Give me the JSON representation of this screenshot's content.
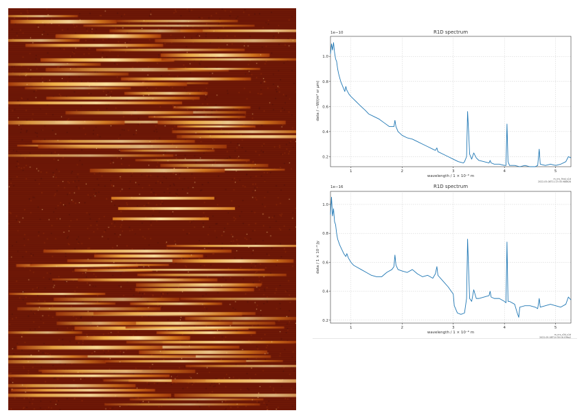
{
  "detector_image": {
    "background": "#6a1606",
    "colors": [
      "#a83e0c",
      "#d4781e",
      "#f0b048",
      "#ffe3a0"
    ]
  },
  "chart_data": [
    {
      "type": "line",
      "title": "R1D spectrum",
      "scale_note": "1e−10",
      "xlabel": "wavelength / 1 × 10⁻⁶ m",
      "ylabel": "data / −W/(m² sr μm)",
      "xlim": [
        0.6,
        5.3
      ],
      "ylim": [
        0.12,
        1.16
      ],
      "xticks": [
        1,
        2,
        3,
        4,
        5
      ],
      "yticks": [
        0.2,
        0.4,
        0.6,
        0.8,
        1.0
      ],
      "grid": true,
      "footnote": [
        "m_nrs_final_s1d",
        "2022-05-08T11:23:30.988628"
      ],
      "series": [
        {
          "color": "#1f77b4",
          "points": [
            [
              0.6,
              1.02
            ],
            [
              0.62,
              1.1
            ],
            [
              0.64,
              1.05
            ],
            [
              0.66,
              1.11
            ],
            [
              0.68,
              1.03
            ],
            [
              0.7,
              0.98
            ],
            [
              0.72,
              0.96
            ],
            [
              0.74,
              0.9
            ],
            [
              0.76,
              0.86
            ],
            [
              0.8,
              0.8
            ],
            [
              0.84,
              0.76
            ],
            [
              0.88,
              0.72
            ],
            [
              0.9,
              0.76
            ],
            [
              0.92,
              0.73
            ],
            [
              0.96,
              0.7
            ],
            [
              1.0,
              0.68
            ],
            [
              1.05,
              0.66
            ],
            [
              1.1,
              0.64
            ],
            [
              1.15,
              0.62
            ],
            [
              1.2,
              0.6
            ],
            [
              1.28,
              0.57
            ],
            [
              1.35,
              0.54
            ],
            [
              1.45,
              0.52
            ],
            [
              1.55,
              0.5
            ],
            [
              1.65,
              0.47
            ],
            [
              1.75,
              0.44
            ],
            [
              1.8,
              0.44
            ],
            [
              1.84,
              0.44
            ],
            [
              1.86,
              0.49
            ],
            [
              1.88,
              0.44
            ],
            [
              1.92,
              0.4
            ],
            [
              2.0,
              0.37
            ],
            [
              2.1,
              0.35
            ],
            [
              2.2,
              0.34
            ],
            [
              2.3,
              0.32
            ],
            [
              2.4,
              0.3
            ],
            [
              2.5,
              0.28
            ],
            [
              2.6,
              0.26
            ],
            [
              2.65,
              0.25
            ],
            [
              2.68,
              0.27
            ],
            [
              2.7,
              0.24
            ],
            [
              2.8,
              0.22
            ],
            [
              2.9,
              0.2
            ],
            [
              3.0,
              0.18
            ],
            [
              3.1,
              0.16
            ],
            [
              3.2,
              0.15
            ],
            [
              3.22,
              0.16
            ],
            [
              3.26,
              0.2
            ],
            [
              3.28,
              0.56
            ],
            [
              3.3,
              0.4
            ],
            [
              3.32,
              0.22
            ],
            [
              3.36,
              0.18
            ],
            [
              3.4,
              0.23
            ],
            [
              3.45,
              0.19
            ],
            [
              3.5,
              0.17
            ],
            [
              3.6,
              0.16
            ],
            [
              3.7,
              0.15
            ],
            [
              3.72,
              0.17
            ],
            [
              3.74,
              0.15
            ],
            [
              3.8,
              0.14
            ],
            [
              3.9,
              0.14
            ],
            [
              4.0,
              0.13
            ],
            [
              4.03,
              0.13
            ],
            [
              4.05,
              0.46
            ],
            [
              4.07,
              0.16
            ],
            [
              4.1,
              0.13
            ],
            [
              4.2,
              0.13
            ],
            [
              4.3,
              0.12
            ],
            [
              4.4,
              0.13
            ],
            [
              4.5,
              0.12
            ],
            [
              4.6,
              0.12
            ],
            [
              4.65,
              0.13
            ],
            [
              4.68,
              0.26
            ],
            [
              4.7,
              0.14
            ],
            [
              4.8,
              0.13
            ],
            [
              4.9,
              0.14
            ],
            [
              5.0,
              0.13
            ],
            [
              5.1,
              0.14
            ],
            [
              5.2,
              0.16
            ],
            [
              5.25,
              0.2
            ],
            [
              5.3,
              0.19
            ]
          ]
        }
      ]
    },
    {
      "type": "line",
      "title": "R1D spectrum",
      "scale_note": "1e−16",
      "xlabel": "wavelength / 1 × 10⁻⁶ m",
      "ylabel": "data / 1 × 10⁻² Jy",
      "xlim": [
        0.6,
        5.3
      ],
      "ylim": [
        0.18,
        1.09
      ],
      "xticks": [
        1,
        2,
        3,
        4,
        5
      ],
      "yticks": [
        0.2,
        0.4,
        0.6,
        0.8,
        1.0
      ],
      "grid": true,
      "footnote": [
        "m_nrs_s3d_s1d",
        "2022-05-08T14:30:16.036a2"
      ],
      "series": [
        {
          "color": "#1f77b4",
          "points": [
            [
              0.6,
              0.93
            ],
            [
              0.62,
              1.05
            ],
            [
              0.64,
              0.92
            ],
            [
              0.66,
              0.97
            ],
            [
              0.68,
              0.88
            ],
            [
              0.7,
              0.86
            ],
            [
              0.72,
              0.8
            ],
            [
              0.74,
              0.76
            ],
            [
              0.78,
              0.72
            ],
            [
              0.82,
              0.69
            ],
            [
              0.86,
              0.66
            ],
            [
              0.9,
              0.64
            ],
            [
              0.92,
              0.66
            ],
            [
              0.95,
              0.63
            ],
            [
              1.0,
              0.6
            ],
            [
              1.05,
              0.58
            ],
            [
              1.1,
              0.57
            ],
            [
              1.2,
              0.55
            ],
            [
              1.3,
              0.53
            ],
            [
              1.4,
              0.51
            ],
            [
              1.5,
              0.5
            ],
            [
              1.6,
              0.5
            ],
            [
              1.7,
              0.53
            ],
            [
              1.8,
              0.55
            ],
            [
              1.84,
              0.57
            ],
            [
              1.86,
              0.65
            ],
            [
              1.88,
              0.58
            ],
            [
              1.92,
              0.55
            ],
            [
              2.0,
              0.54
            ],
            [
              2.1,
              0.53
            ],
            [
              2.2,
              0.55
            ],
            [
              2.3,
              0.52
            ],
            [
              2.4,
              0.5
            ],
            [
              2.5,
              0.51
            ],
            [
              2.6,
              0.49
            ],
            [
              2.65,
              0.52
            ],
            [
              2.68,
              0.57
            ],
            [
              2.7,
              0.51
            ],
            [
              2.8,
              0.47
            ],
            [
              2.9,
              0.43
            ],
            [
              3.0,
              0.38
            ],
            [
              3.02,
              0.3
            ],
            [
              3.08,
              0.25
            ],
            [
              3.15,
              0.24
            ],
            [
              3.22,
              0.25
            ],
            [
              3.26,
              0.35
            ],
            [
              3.28,
              0.76
            ],
            [
              3.3,
              0.55
            ],
            [
              3.32,
              0.35
            ],
            [
              3.36,
              0.33
            ],
            [
              3.4,
              0.41
            ],
            [
              3.45,
              0.35
            ],
            [
              3.5,
              0.35
            ],
            [
              3.6,
              0.36
            ],
            [
              3.7,
              0.37
            ],
            [
              3.72,
              0.4
            ],
            [
              3.74,
              0.36
            ],
            [
              3.8,
              0.35
            ],
            [
              3.9,
              0.35
            ],
            [
              4.0,
              0.33
            ],
            [
              4.03,
              0.32
            ],
            [
              4.05,
              0.74
            ],
            [
              4.07,
              0.33
            ],
            [
              4.1,
              0.33
            ],
            [
              4.2,
              0.31
            ],
            [
              4.25,
              0.25
            ],
            [
              4.28,
              0.22
            ],
            [
              4.3,
              0.29
            ],
            [
              4.4,
              0.3
            ],
            [
              4.5,
              0.3
            ],
            [
              4.6,
              0.29
            ],
            [
              4.65,
              0.28
            ],
            [
              4.68,
              0.35
            ],
            [
              4.7,
              0.29
            ],
            [
              4.8,
              0.3
            ],
            [
              4.9,
              0.31
            ],
            [
              5.0,
              0.3
            ],
            [
              5.1,
              0.29
            ],
            [
              5.2,
              0.31
            ],
            [
              5.25,
              0.36
            ],
            [
              5.3,
              0.34
            ]
          ]
        }
      ]
    }
  ]
}
